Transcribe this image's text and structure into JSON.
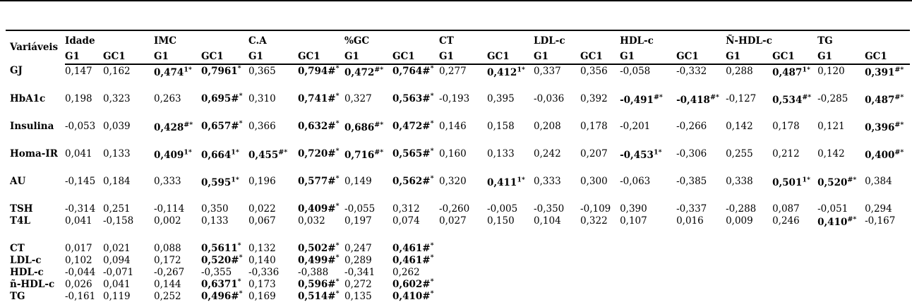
{
  "page": {
    "background_color": "#ffffff",
    "text_color": "#000000",
    "rule_color": "#000000"
  },
  "table": {
    "corner_label": "Variáveis",
    "notation": {
      "cell_format": "text after | renders as a superscript; cells containing | are shown in bold"
    },
    "column_groups": [
      {
        "label": "Idade",
        "sub": [
          "G1",
          "GC1"
        ]
      },
      {
        "label": "IMC",
        "sub": [
          "G1",
          "GC1"
        ]
      },
      {
        "label": "C.A",
        "sub": [
          "G1",
          "GC1"
        ]
      },
      {
        "label": "%GC",
        "sub": [
          "G1",
          "GC1"
        ]
      },
      {
        "label": "CT",
        "sub": [
          "G1",
          "GC1"
        ]
      },
      {
        "label": "LDL-c",
        "sub": [
          "G1",
          "GC1"
        ]
      },
      {
        "label": "HDL-c",
        "sub": [
          "G1",
          "GC1"
        ]
      },
      {
        "label": "Ñ-HDL-c",
        "sub": [
          "G1",
          "GC1"
        ]
      },
      {
        "label": "TG",
        "sub": [
          "G1",
          "GC1"
        ]
      }
    ],
    "row_groups": [
      {
        "name": "glycemic-metabolic",
        "rows": [
          {
            "label": "GJ",
            "cells": [
              "0,147",
              "0,162",
              "0,474|1*",
              "0,7961|*",
              "0,365",
              "0,794#|*",
              "0,472|#*",
              "0,764#|*",
              "0,277",
              "0,412|1*",
              "0,337",
              "0,356",
              "-0,058",
              "-0,332",
              "0,288",
              "0,487|1*",
              "0,120",
              "0,391|#*"
            ]
          },
          {
            "label": "HbA1c",
            "cells": [
              "0,198",
              "0,323",
              "0,263",
              "0,695#|*",
              "0,310",
              "0,741#|*",
              "0,327",
              "0,563#|*",
              "-0,193",
              "0,395",
              "-0,036",
              "0,392",
              "-0,491|#*",
              "-0,418|#*",
              "-0,127",
              "0,534|#*",
              "-0,285",
              "0,487|#*"
            ]
          },
          {
            "label": "Insulina",
            "cells": [
              "-0,053",
              "0,039",
              "0,428|#*",
              "0,657#|*",
              "0,366",
              "0,632#|*",
              "0,686|#*",
              "0,472#|*",
              "0,146",
              "0,158",
              "0,208",
              "0,178",
              "-0,201",
              "-0,266",
              "0,142",
              "0,178",
              "0,121",
              "0,396|#*"
            ]
          },
          {
            "label": "Homa-IR",
            "cells": [
              "0,041",
              "0,133",
              "0,409|1*",
              "0,664|1*",
              "0,455|#*",
              "0,720#|*",
              "0,716|#*",
              "0,565#|*",
              "0,160",
              "0,133",
              "0,242",
              "0,207",
              "-0,453|1*",
              "-0,306",
              "0,255",
              "0,212",
              "0,142",
              "0,400|#*"
            ]
          },
          {
            "label": "AU",
            "cells": [
              "-0,145",
              "0,184",
              "0,333",
              "0,595|1*",
              "0,196",
              "0,577#|*",
              "0,149",
              "0,562#|*",
              "0,320",
              "0,411|1*",
              "0,333",
              "0,300",
              "-0,063",
              "-0,385",
              "0,338",
              "0,501|1*",
              "0,520|#*",
              "0,384"
            ]
          }
        ]
      },
      {
        "name": "thyroid",
        "rows": [
          {
            "label": "TSH",
            "cells": [
              "-0,314",
              "0,251",
              "-0,114",
              "0,350",
              "0,022",
              "0,409#|*",
              "-0,055",
              "0,312",
              "-0,260",
              "-0,005",
              "-0,350",
              "-0,109",
              "0,390",
              "-0,337",
              "-0,288",
              "0,087",
              "-0,051",
              "0,294"
            ]
          },
          {
            "label": "T4L",
            "cells": [
              "0,041",
              "-0,158",
              "0,002",
              "0,133",
              "0,067",
              "0,032",
              "0,197",
              "0,074",
              "0,027",
              "0,150",
              "0,104",
              "0,322",
              "0,107",
              "0,016",
              "0,009",
              "0,246",
              "0,410|#*",
              "-0,167"
            ]
          }
        ]
      },
      {
        "name": "lipid",
        "rows": [
          {
            "label": "CT",
            "cells": [
              "0,017",
              "0,021",
              "0,088",
              "0,5611|*",
              "0,132",
              "0,502#|*",
              "0,247",
              "0,461#|*",
              "",
              "",
              "",
              "",
              "",
              "",
              "",
              "",
              "",
              ""
            ]
          },
          {
            "label": "LDL-c",
            "cells": [
              "0,102",
              "0,094",
              "0,172",
              "0,520#|*",
              "0,140",
              "0,499#|*",
              "0,289",
              "0,461#|*",
              "",
              "",
              "",
              "",
              "",
              "",
              "",
              "",
              "",
              ""
            ]
          },
          {
            "label": "HDL-c",
            "cells": [
              "-0,044",
              "-0,071",
              "-0,267",
              "-0,355",
              "-0,336",
              "-0,388",
              "-0,341",
              "0,262",
              "",
              "",
              "",
              "",
              "",
              "",
              "",
              "",
              "",
              ""
            ]
          },
          {
            "label": "ñ-HDL-c",
            "cells": [
              "0,026",
              "0,041",
              "0,144",
              "0,6371|*",
              "0,173",
              "0,596#|*",
              "0,272",
              "0,602#|*",
              "",
              "",
              "",
              "",
              "",
              "",
              "",
              "",
              "",
              ""
            ]
          },
          {
            "label": "TG",
            "cells": [
              "-0,161",
              "0,119",
              "0,252",
              "0,496#|*",
              "0,169",
              "0,514#|*",
              "0,135",
              "0,410#|*",
              "",
              "",
              "",
              "",
              "",
              "",
              "",
              "",
              "",
              ""
            ]
          }
        ]
      }
    ]
  }
}
